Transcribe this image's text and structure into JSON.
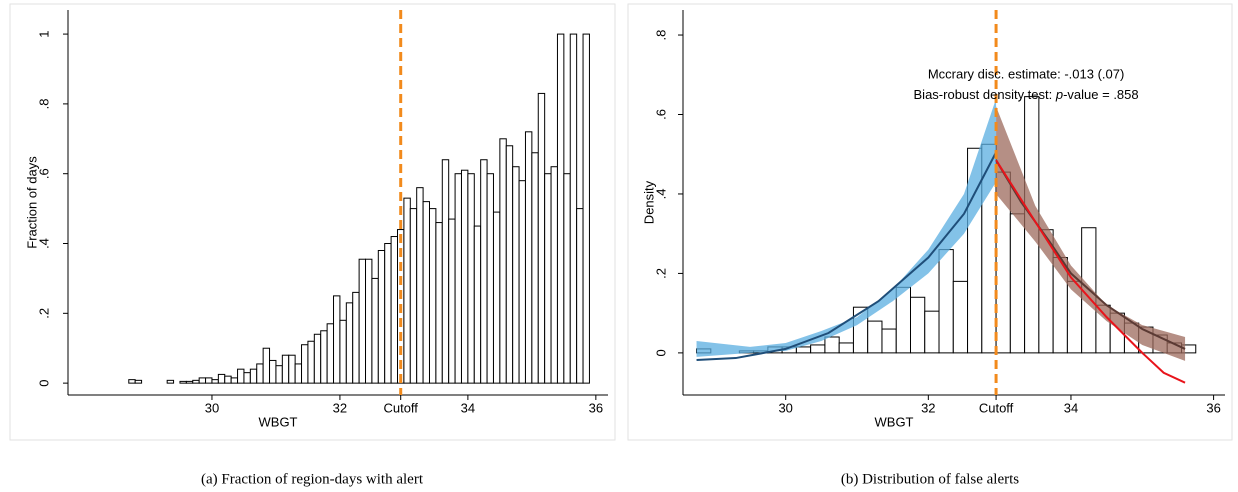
{
  "chart_data": [
    {
      "type": "histogram",
      "caption": "(a) Fraction of region-days with alert",
      "xlabel": "WBGT",
      "ylabel": "Fraction of days",
      "bar_color": "#ffffff",
      "cutoff_color": "#f28a1c",
      "xlim": [
        27.75,
        36.19
      ],
      "ylim": [
        -0.034,
        1.069
      ],
      "xticks": [
        30,
        32,
        {
          "value": 32.95,
          "label": "Cutoff"
        },
        34,
        36
      ],
      "yticks": [
        0,
        {
          "value": 0.2,
          "label": ".2"
        },
        {
          "value": 0.4,
          "label": ".4"
        },
        {
          "value": 0.6,
          "label": ".6"
        },
        {
          "value": 0.8,
          "label": ".8"
        },
        1
      ],
      "bins": [
        28.7,
        28.8,
        28.9,
        29.0,
        29.1,
        29.2,
        29.3,
        29.4,
        29.5,
        29.6,
        29.7,
        29.8,
        29.9,
        30.0,
        30.1,
        30.2,
        30.3,
        30.4,
        30.5,
        30.6,
        30.7,
        30.8,
        30.9,
        31.0,
        31.1,
        31.2,
        31.3,
        31.4,
        31.5,
        31.6,
        31.7,
        31.8,
        31.9,
        32.0,
        32.1,
        32.2,
        32.3,
        32.4,
        32.5,
        32.6,
        32.7,
        32.8,
        32.9,
        33.0,
        33.1,
        33.2,
        33.3,
        33.4,
        33.5,
        33.6,
        33.7,
        33.8,
        33.9,
        34.0,
        34.1,
        34.2,
        34.3,
        34.4,
        34.5,
        34.6,
        34.7,
        34.8,
        34.9,
        35.0,
        35.1,
        35.2,
        35.3,
        35.4,
        35.5,
        35.6,
        35.7,
        35.8,
        35.9
      ],
      "values": [
        0.01,
        0.008,
        0,
        0,
        0,
        0,
        0.008,
        0,
        0.005,
        0.005,
        0.008,
        0.015,
        0.015,
        0.01,
        0.025,
        0.02,
        0.015,
        0.04,
        0.03,
        0.04,
        0.055,
        0.1,
        0.065,
        0.05,
        0.08,
        0.08,
        0.055,
        0.11,
        0.12,
        0.14,
        0.15,
        0.17,
        0.25,
        0.18,
        0.23,
        0.26,
        0.355,
        0.355,
        0.3,
        0.38,
        0.4,
        0.42,
        0.44,
        0.53,
        0.5,
        0.56,
        0.52,
        0.5,
        0.46,
        0.64,
        0.47,
        0.6,
        0.61,
        0.6,
        0.45,
        0.64,
        0.6,
        0.49,
        0.7,
        0.68,
        0.62,
        0.58,
        0.72,
        0.66,
        0.83,
        0.6,
        0.62,
        1.0,
        0.6,
        1.0,
        0.5,
        1.0
      ]
    },
    {
      "type": "histogram",
      "caption": "(b) Distribution of false alerts",
      "xlabel": "WBGT",
      "ylabel": "Density",
      "bar_color": "#ffffff",
      "cutoff_color": "#f28a1c",
      "annotation": [
        "Mccrary disc. estimate: -.013 (.07)",
        [
          "Bias-robust density test: ",
          "p",
          "-value = .858"
        ]
      ],
      "xlim": [
        28.56,
        36.16
      ],
      "ylim": [
        -0.106,
        0.863
      ],
      "xticks": [
        30,
        32,
        {
          "value": 32.95,
          "label": "Cutoff"
        },
        34,
        36
      ],
      "yticks": [
        0,
        {
          "value": 0.2,
          "label": ".2"
        },
        {
          "value": 0.4,
          "label": ".4"
        },
        {
          "value": 0.6,
          "label": ".6"
        },
        {
          "value": 0.8,
          "label": ".8"
        }
      ],
      "bins": [
        28.75,
        28.95,
        29.15,
        29.35,
        29.55,
        29.75,
        29.95,
        30.15,
        30.35,
        30.55,
        30.75,
        30.95,
        31.15,
        31.35,
        31.55,
        31.75,
        31.95,
        32.15,
        32.35,
        32.55,
        32.75,
        32.95,
        33.15,
        33.35,
        33.55,
        33.75,
        33.95,
        34.15,
        34.35,
        34.55,
        34.75,
        34.95,
        35.15,
        35.35,
        35.55,
        35.75
      ],
      "values": [
        0.01,
        0,
        0,
        0.005,
        0.005,
        0.015,
        0.015,
        0.015,
        0.02,
        0.04,
        0.025,
        0.115,
        0.08,
        0.06,
        0.165,
        0.14,
        0.105,
        0.26,
        0.18,
        0.515,
        0.525,
        0.455,
        0.35,
        0.645,
        0.31,
        0.24,
        0.18,
        0.315,
        0.12,
        0.1,
        0.075,
        0.065,
        0.045,
        0.025,
        0.02
      ],
      "bands": [
        {
          "color": "#5aaee0",
          "x": [
            28.75,
            29.5,
            30,
            30.5,
            31,
            31.5,
            32,
            32.5,
            32.95
          ],
          "lower": [
            -0.01,
            0.0,
            0.005,
            0.03,
            0.07,
            0.13,
            0.2,
            0.3,
            0.43
          ],
          "upper": [
            0.03,
            0.015,
            0.025,
            0.055,
            0.09,
            0.16,
            0.26,
            0.4,
            0.64
          ]
        },
        {
          "color": "#9c6a5c",
          "x": [
            32.95,
            33.5,
            34,
            34.5,
            35,
            35.6
          ],
          "lower": [
            0.4,
            0.28,
            0.16,
            0.08,
            0.02,
            -0.02
          ],
          "upper": [
            0.62,
            0.37,
            0.22,
            0.12,
            0.07,
            0.04
          ]
        }
      ],
      "lines": [
        {
          "color": "#1f4e79",
          "x": [
            28.75,
            29.3,
            30,
            30.6,
            31.3,
            32,
            32.5,
            32.95
          ],
          "values": [
            -0.018,
            -0.013,
            0.01,
            0.05,
            0.13,
            0.24,
            0.35,
            0.505
          ]
        },
        {
          "color": "#5b3a34",
          "x": [
            32.95,
            33.3,
            33.7,
            34,
            34.5,
            35,
            35.6
          ],
          "values": [
            0.485,
            0.38,
            0.28,
            0.2,
            0.12,
            0.06,
            0.01
          ]
        },
        {
          "color": "#e8141b",
          "x": [
            32.95,
            33.5,
            34,
            34.5,
            35,
            35.3,
            35.6
          ],
          "values": [
            0.485,
            0.33,
            0.19,
            0.09,
            0.0,
            -0.05,
            -0.075
          ]
        }
      ]
    }
  ]
}
